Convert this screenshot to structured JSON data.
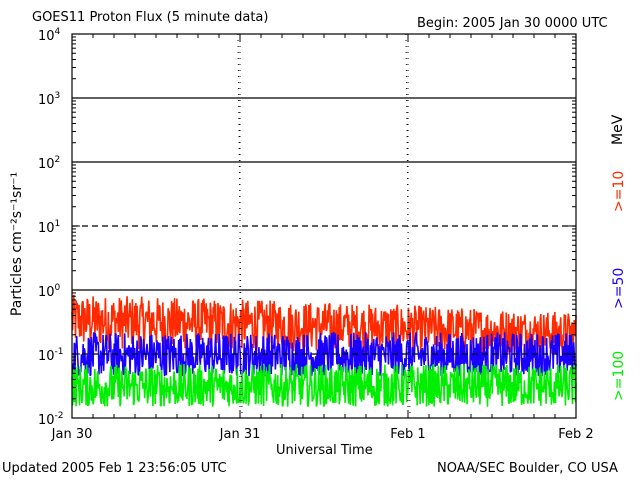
{
  "header": {
    "title": "GOES11 Proton Flux (5 minute data)",
    "begin": "Begin: 2005 Jan 30 0000 UTC"
  },
  "footer": {
    "updated": "Updated 2005 Feb  1 23:56:05 UTC",
    "credit": "NOAA/SEC Boulder, CO USA"
  },
  "colors": {
    "p10": "#ff2a00",
    "p50": "#1a00ff",
    "p100": "#00ee00",
    "grid": "#000000"
  },
  "chart_data": {
    "type": "line",
    "title": "GOES11 Proton Flux (5 minute data)",
    "xlabel": "Universal Time",
    "ylabel": "Particles cm⁻²s⁻¹sr⁻¹",
    "yscale": "log",
    "ylim": [
      0.01,
      10000
    ],
    "xlim_days": [
      0,
      3
    ],
    "y_ticks": [
      {
        "value": 0.01,
        "base": "10",
        "exp": "-2"
      },
      {
        "value": 0.1,
        "base": "10",
        "exp": "-1"
      },
      {
        "value": 1,
        "base": "10",
        "exp": "0"
      },
      {
        "value": 10,
        "base": "10",
        "exp": "1"
      },
      {
        "value": 100,
        "base": "10",
        "exp": "2"
      },
      {
        "value": 1000,
        "base": "10",
        "exp": "3"
      },
      {
        "value": 10000,
        "base": "10",
        "exp": "4"
      }
    ],
    "solid_gridlines": [
      1,
      100,
      1000
    ],
    "dashed_gridlines": [
      0.1,
      10
    ],
    "x_ticks": [
      {
        "day": 0,
        "label": "Jan 30"
      },
      {
        "day": 1,
        "label": "Jan 31"
      },
      {
        "day": 2,
        "label": "Feb 1"
      },
      {
        "day": 3,
        "label": "Feb 2"
      }
    ],
    "energy_unit": "MeV",
    "series": [
      {
        "name": ">=10",
        "color": "#ff2a00",
        "typical_low": 0.12,
        "typical_high": 0.85,
        "trend_end_low": 0.09,
        "trend_end_high": 0.45
      },
      {
        "name": ">=50",
        "color": "#1a00ff",
        "typical_low": 0.045,
        "typical_high": 0.22
      },
      {
        "name": ">=100",
        "color": "#00ee00",
        "typical_low": 0.015,
        "typical_high": 0.07
      }
    ]
  }
}
